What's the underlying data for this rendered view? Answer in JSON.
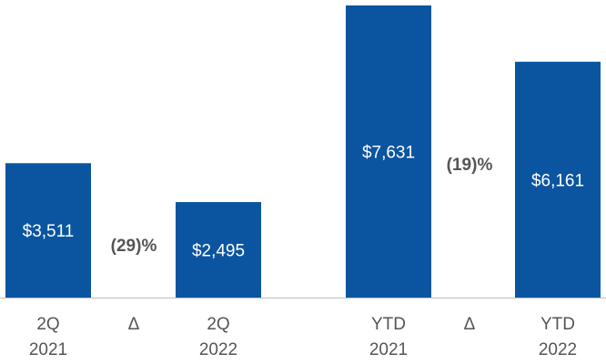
{
  "chart_data": {
    "type": "bar",
    "title": "",
    "xlabel": "",
    "ylabel": "",
    "ylim": [
      0,
      7631
    ],
    "grid": false,
    "legend": "none",
    "bar_color": "#0b55a0",
    "value_label_color": "#ffffff",
    "delta_label_color": "#555555",
    "axis_color": "#bfbfbf",
    "tick_label_color": "#555555",
    "categories": [
      {
        "line1": "2Q",
        "line2": "2021"
      },
      {
        "line1": "Δ",
        "line2": ""
      },
      {
        "line1": "2Q",
        "line2": "2022"
      },
      {
        "line1": "YTD",
        "line2": "2021"
      },
      {
        "line1": "Δ",
        "line2": ""
      },
      {
        "line1": "YTD",
        "line2": "2022"
      }
    ],
    "bars": [
      {
        "category_index": 0,
        "value": 3511,
        "label": "$3,511"
      },
      {
        "category_index": 2,
        "value": 2495,
        "label": "$2,495"
      },
      {
        "category_index": 3,
        "value": 7631,
        "label": "$7,631"
      },
      {
        "category_index": 5,
        "value": 6161,
        "label": "$6,161"
      }
    ],
    "deltas": [
      {
        "category_index": 1,
        "label": "(29)%"
      },
      {
        "category_index": 4,
        "label": "(19)%"
      }
    ]
  }
}
